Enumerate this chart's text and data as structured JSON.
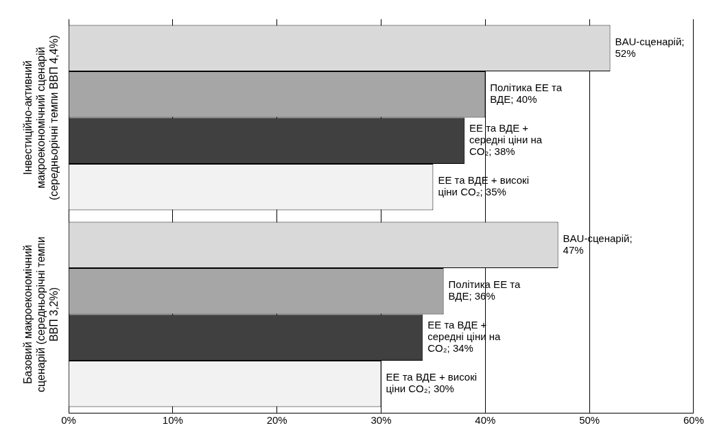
{
  "chart_data": {
    "type": "bar",
    "orientation": "horizontal",
    "categories": [
      "Інвестиційно-активний макроекономічний сценарій (середньорічні темпи ВВП 4,4%)",
      "Базовий макроекономічний сценарій (середньорічні темпи ВВП 3,2%)"
    ],
    "series": [
      {
        "name": "BAU-сценарій;",
        "color": "#d9d9d9",
        "values": [
          52,
          47
        ],
        "value_labels": [
          "52%",
          "47%"
        ]
      },
      {
        "name": "Політика ЕЕ та ВДЕ;",
        "color": "#a6a6a6",
        "values": [
          40,
          36
        ],
        "value_labels": [
          "40%",
          "36%"
        ]
      },
      {
        "name": "ЕЕ та ВДЕ + середні ціни на CO₂;",
        "color": "#404040",
        "values": [
          38,
          34
        ],
        "value_labels": [
          "38%",
          "34%"
        ]
      },
      {
        "name": "ЕЕ та ВДЕ + високі ціни CO₂;",
        "color": "#f2f2f2",
        "values": [
          35,
          30
        ],
        "value_labels": [
          "35%",
          "30%"
        ]
      }
    ],
    "xlim": [
      0,
      60
    ],
    "xticks": [
      {
        "value": 0,
        "label": "0%"
      },
      {
        "value": 10,
        "label": "10%"
      },
      {
        "value": 20,
        "label": "20%"
      },
      {
        "value": 30,
        "label": "30%"
      },
      {
        "value": 40,
        "label": "40%"
      },
      {
        "value": 50,
        "label": "50%"
      },
      {
        "value": 60,
        "label": "60%"
      }
    ],
    "grid": "x",
    "legend": false
  }
}
